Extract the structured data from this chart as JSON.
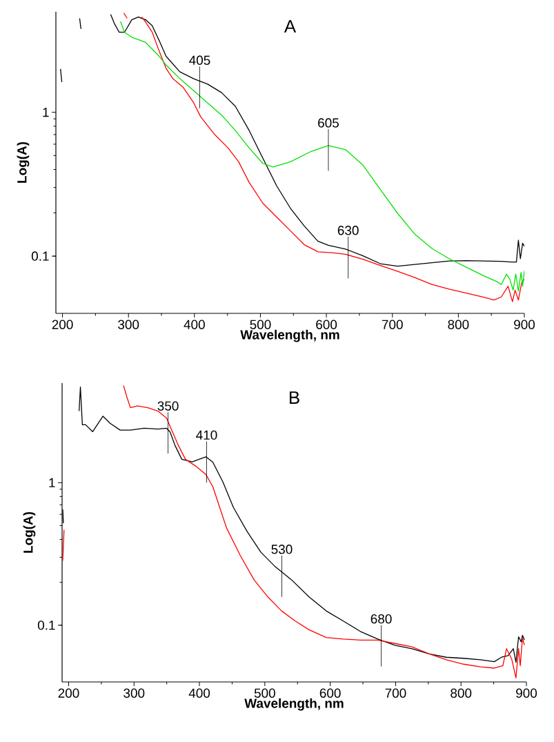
{
  "chart_data": [
    {
      "type": "line",
      "title": "A",
      "xlabel": "Wavelength, nm",
      "ylabel": "Log(A)",
      "log": "y",
      "xlim": [
        190,
        900
      ],
      "ylim": [
        0.04,
        5
      ],
      "xticks": [
        200,
        300,
        400,
        500,
        600,
        700,
        800,
        900
      ],
      "yticks": [
        0.1,
        1
      ],
      "grid": false,
      "series": [
        {
          "color": "#000000",
          "x": [
            197,
            199,
            null,
            226,
            228,
            null,
            273,
            278.5,
            286,
            294,
            305,
            315,
            326,
            336,
            346.6,
            357,
            378,
            399,
            420,
            441,
            462,
            483,
            503.7,
            524.6,
            545.5,
            566,
            587,
            603,
            629,
            655.5,
            681.7,
            708,
            734,
            760,
            786,
            812,
            838.7,
            865,
            880.6,
            888,
            891,
            894,
            897.4,
            900
          ],
          "values": [
            2.0,
            1.62,
            null,
            4.5,
            3.8,
            null,
            4.8,
            4.15,
            3.6,
            3.6,
            4.4,
            4.6,
            4.4,
            4.0,
            3.15,
            2.45,
            1.91,
            1.71,
            1.57,
            1.37,
            1.1,
            0.746,
            0.479,
            0.308,
            0.215,
            0.163,
            0.127,
            0.119,
            0.112,
            0.1005,
            0.0886,
            0.0852,
            0.0876,
            0.09,
            0.0925,
            0.093,
            0.0925,
            0.092,
            0.091,
            0.091,
            0.129,
            0.096,
            0.123,
            0.117
          ]
        },
        {
          "color": "#ff0000",
          "x": [
            293,
            298,
            null,
            320,
            325.6,
            336,
            346.6,
            357,
            367.5,
            383,
            399,
            409.4,
            430,
            451,
            467,
            483,
            503.7,
            524.6,
            545.5,
            566.5,
            587.4,
            608.4,
            629,
            655.5,
            681.7,
            708,
            734,
            760,
            786,
            812,
            838.7,
            854,
            865,
            875.4,
            882,
            886,
            891,
            896,
            900
          ],
          "values": [
            4.9,
            4.5,
            null,
            4.6,
            4.27,
            3.6,
            2.66,
            2.02,
            1.71,
            1.49,
            1.16,
            0.931,
            0.706,
            0.565,
            0.453,
            0.325,
            0.233,
            0.187,
            0.15,
            0.12,
            0.107,
            0.1057,
            0.103,
            0.095,
            0.086,
            0.0783,
            0.071,
            0.0635,
            0.059,
            0.0553,
            0.0518,
            0.0495,
            0.052,
            0.0618,
            0.0482,
            0.058,
            0.0495,
            0.0653,
            0.069
          ]
        },
        {
          "color": "#00e000",
          "x": [
            288,
            294,
            305,
            326,
            346.6,
            357,
            378,
            399,
            420,
            441,
            462,
            483,
            503.7,
            519,
            545.5,
            577,
            603,
            629,
            655.5,
            681.7,
            708,
            734,
            760,
            786,
            812,
            838.7,
            859.7,
            865,
            873,
            878,
            883,
            887,
            891,
            895,
            897.4,
            900
          ],
          "values": [
            4.27,
            3.6,
            3.33,
            3.06,
            2.45,
            2.13,
            1.71,
            1.41,
            1.16,
            0.957,
            0.746,
            0.565,
            0.441,
            0.417,
            0.453,
            0.535,
            0.587,
            0.55,
            0.429,
            0.291,
            0.198,
            0.142,
            0.113,
            0.096,
            0.0838,
            0.073,
            0.066,
            0.0635,
            0.075,
            0.069,
            0.058,
            0.075,
            0.057,
            0.077,
            0.0618,
            0.079
          ]
        }
      ],
      "annotations": [
        {
          "text": "405",
          "x": 408,
          "y": 1.6
        },
        {
          "text": "605",
          "x": 603,
          "y": 0.587
        },
        {
          "text": "630",
          "x": 633,
          "y": 0.105
        }
      ]
    },
    {
      "type": "line",
      "title": "B",
      "xlabel": "Wavelength, nm",
      "ylabel": "Log(A)",
      "log": "y",
      "xlim": [
        190,
        900
      ],
      "ylim": [
        0.04,
        5
      ],
      "xticks": [
        200,
        300,
        400,
        500,
        600,
        700,
        800,
        900
      ],
      "yticks": [
        0.1,
        1
      ],
      "grid": false,
      "series": [
        {
          "color": "#000000",
          "x": [
            191,
            192,
            null,
            216,
            218,
            221,
            226,
            236.8,
            252.5,
            263,
            278.8,
            294.5,
            315.5,
            336.6,
            349.7,
            355,
            362.8,
            373,
            389,
            399.6,
            410,
            420.6,
            436,
            452,
            473,
            494,
            515,
            541,
            567.6,
            593.9,
            620,
            646,
            672.7,
            699,
            725,
            751.5,
            777.7,
            804,
            830,
            851,
            861.8,
            872,
            880,
            884,
            888,
            892,
            894,
            897
          ],
          "values": [
            0.65,
            0.52,
            null,
            3.18,
            4.69,
            2.55,
            2.55,
            2.28,
            2.93,
            2.62,
            2.34,
            2.34,
            2.41,
            2.38,
            2.41,
            2.28,
            1.82,
            1.46,
            1.4,
            1.46,
            1.52,
            1.39,
            1.01,
            0.67,
            0.454,
            0.325,
            0.26,
            0.208,
            0.158,
            0.126,
            0.107,
            0.0905,
            0.08,
            0.0724,
            0.0685,
            0.063,
            0.0596,
            0.0586,
            0.0573,
            0.0555,
            0.0596,
            0.0612,
            0.0685,
            0.055,
            0.083,
            0.0765,
            0.085,
            0.079
          ]
        },
        {
          "color": "#ff0000",
          "x": [
            191,
            193,
            null,
            284,
            289,
            294.5,
            305,
            321,
            336.6,
            349.7,
            357.6,
            368,
            378.6,
            394,
            410,
            420.6,
            431,
            441.6,
            462.6,
            483.6,
            504.6,
            525.6,
            546.6,
            567.6,
            594,
            620,
            646,
            672.7,
            699,
            725,
            751.5,
            777.7,
            804,
            830,
            851,
            864,
            869.6,
            877.5,
            884,
            888,
            890.6,
            894,
            897
          ],
          "values": [
            0.283,
            0.467,
            null,
            4.8,
            4.0,
            3.36,
            3.46,
            3.36,
            3.18,
            2.84,
            2.34,
            1.82,
            1.46,
            1.31,
            1.14,
            0.936,
            0.67,
            0.48,
            0.308,
            0.208,
            0.158,
            0.126,
            0.107,
            0.093,
            0.082,
            0.08,
            0.0787,
            0.0787,
            0.0745,
            0.0705,
            0.063,
            0.0573,
            0.0533,
            0.051,
            0.05,
            0.052,
            0.0685,
            0.058,
            0.0427,
            0.0685,
            0.052,
            0.081,
            0.0725
          ]
        }
      ],
      "annotations": [
        {
          "text": "350",
          "x": 352,
          "y": 2.4
        },
        {
          "text": "410",
          "x": 411,
          "y": 1.5
        },
        {
          "text": "530",
          "x": 526,
          "y": 0.237
        },
        {
          "text": "680",
          "x": 678,
          "y": 0.077
        }
      ]
    }
  ]
}
